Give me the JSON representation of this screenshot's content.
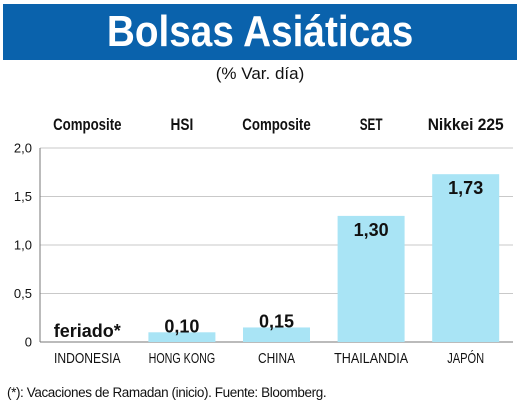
{
  "title": "Bolsas Asiáticas",
  "subtitle": "(% Var. día)",
  "footnote": "(*): Vacaciones de Ramadan (inicio). Fuente: Bloomberg.",
  "colors": {
    "title_band": "#0a62ac",
    "bar": "#a9e4f5",
    "grid": "#c9c9c9",
    "text": "#111111"
  },
  "chart_data": {
    "type": "bar",
    "title": "Bolsas Asiáticas",
    "subtitle": "(% Var. día)",
    "xlabel": "",
    "ylabel": "",
    "ylim": [
      0,
      2.0
    ],
    "yticks": [
      "0",
      "0,5",
      "1,0",
      "1,5",
      "2,0"
    ],
    "grid": true,
    "categories": [
      "INDONESIA",
      "HONG KONG",
      "CHINA",
      "THAILANDIA",
      "JAPÓN"
    ],
    "indices": [
      "Composite",
      "HSI",
      "Composite",
      "SET",
      "Nikkei 225"
    ],
    "values": [
      null,
      0.1,
      0.15,
      1.3,
      1.73
    ],
    "data_labels": [
      "feriado*",
      "0,10",
      "0,15",
      "1,30",
      "1,73"
    ]
  }
}
